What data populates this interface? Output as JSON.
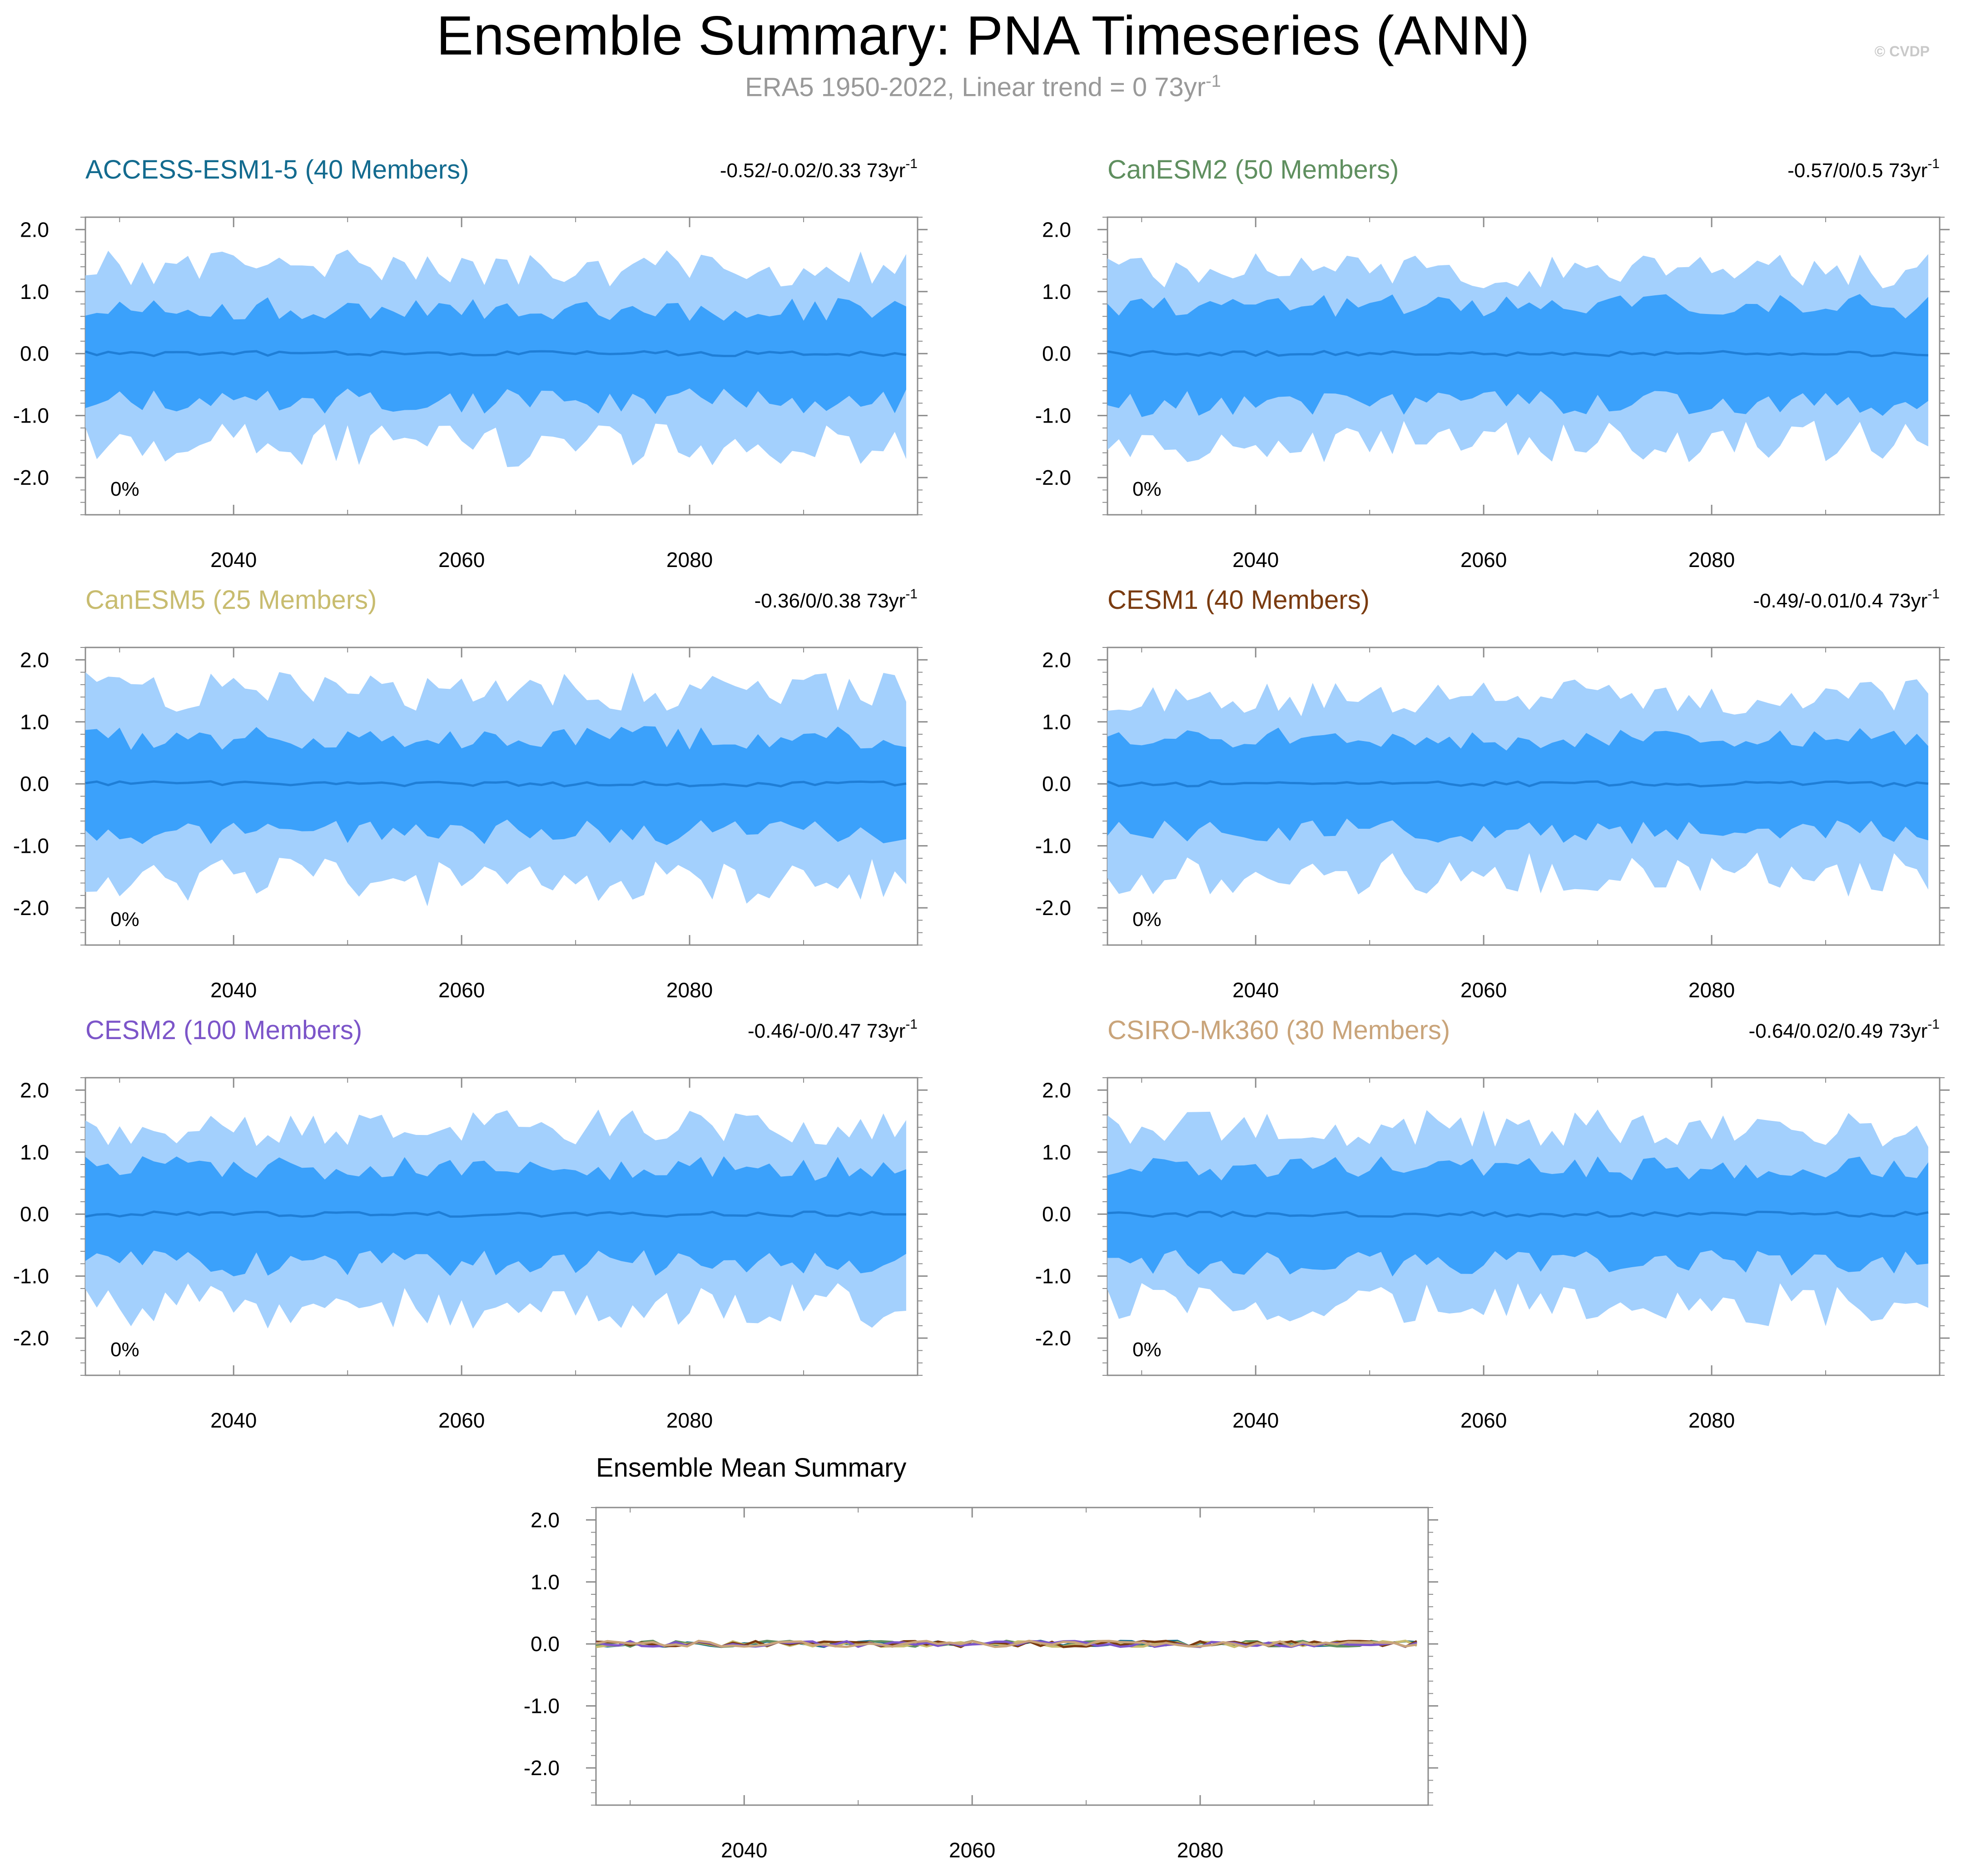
{
  "figure": {
    "title": "Ensemble Summary: PNA Timeseries (ANN)",
    "subtitle": "ERA5 1950-2022, Linear trend = 0 73yr",
    "subtitle_sup": "-1",
    "watermark": "© CVDP"
  },
  "chart_data": [
    {
      "type": "area",
      "title": "ACCESS-ESM1-5 (40 Members)",
      "title_color": "#136b8f",
      "stats": "-0.52/-0.02/0.33 73yr",
      "stats_sup": "-1",
      "annotation": "0%",
      "xlim": [
        2027,
        2100
      ],
      "ylim": [
        -2.6,
        2.2
      ],
      "x_ticks": [
        2040,
        2060,
        2080
      ],
      "y_ticks": [
        "2.0",
        "1.0",
        "0.0",
        "-1.0",
        "-2.0"
      ],
      "outer_amp": 1.35,
      "inner_amp": 0.7,
      "seed": 11
    },
    {
      "type": "area",
      "title": "CanESM2 (50 Members)",
      "title_color": "#5f8f5f",
      "stats": "-0.57/0/0.5 73yr",
      "stats_sup": "-1",
      "annotation": "0%",
      "xlim": [
        2027,
        2100
      ],
      "ylim": [
        -2.6,
        2.2
      ],
      "x_ticks": [
        2040,
        2060,
        2080
      ],
      "y_ticks": [
        "2.0",
        "1.0",
        "0.0",
        "-1.0",
        "-2.0"
      ],
      "outer_amp": 1.3,
      "inner_amp": 0.75,
      "seed": 23
    },
    {
      "type": "area",
      "title": "CanESM5 (25 Members)",
      "title_color": "#c8bc6f",
      "stats": "-0.36/0/0.38 73yr",
      "stats_sup": "-1",
      "annotation": "0%",
      "xlim": [
        2027,
        2100
      ],
      "ylim": [
        -2.6,
        2.2
      ],
      "x_ticks": [
        2040,
        2060,
        2080
      ],
      "y_ticks": [
        "2.0",
        "1.0",
        "0.0",
        "-1.0",
        "-2.0"
      ],
      "outer_amp": 1.45,
      "inner_amp": 0.72,
      "seed": 37
    },
    {
      "type": "area",
      "title": "CESM1 (40 Members)",
      "title_color": "#7a3b10",
      "stats": "-0.49/-0.01/0.4 73yr",
      "stats_sup": "-1",
      "annotation": "0%",
      "xlim": [
        2027,
        2100
      ],
      "ylim": [
        -2.6,
        2.2
      ],
      "x_ticks": [
        2040,
        2060,
        2080
      ],
      "y_ticks": [
        "2.0",
        "1.0",
        "0.0",
        "-1.0",
        "-2.0"
      ],
      "outer_amp": 1.35,
      "inner_amp": 0.7,
      "seed": 41
    },
    {
      "type": "area",
      "title": "CESM2 (100 Members)",
      "title_color": "#7c55c9",
      "stats": "-0.46/-0/0.47 73yr",
      "stats_sup": "-1",
      "annotation": "0%",
      "xlim": [
        2027,
        2100
      ],
      "ylim": [
        -2.6,
        2.2
      ],
      "x_ticks": [
        2040,
        2060,
        2080
      ],
      "y_ticks": [
        "2.0",
        "1.0",
        "0.0",
        "-1.0",
        "-2.0"
      ],
      "outer_amp": 1.35,
      "inner_amp": 0.72,
      "seed": 53
    },
    {
      "type": "area",
      "title": "CSIRO-Mk360 (30 Members)",
      "title_color": "#c9a47a",
      "stats": "-0.64/0.02/0.49 73yr",
      "stats_sup": "-1",
      "annotation": "0%",
      "xlim": [
        2027,
        2100
      ],
      "ylim": [
        -2.6,
        2.2
      ],
      "x_ticks": [
        2040,
        2060,
        2080
      ],
      "y_ticks": [
        "2.0",
        "1.0",
        "0.0",
        "-1.0",
        "-2.0"
      ],
      "outer_amp": 1.35,
      "inner_amp": 0.72,
      "seed": 67
    },
    {
      "type": "line",
      "title": "Ensemble Mean Summary",
      "title_color": "#000000",
      "xlim": [
        2027,
        2100
      ],
      "ylim": [
        -2.6,
        2.2
      ],
      "x_ticks": [
        2040,
        2060,
        2080
      ],
      "y_ticks": [
        "2.0",
        "1.0",
        "0.0",
        "-1.0",
        "-2.0"
      ],
      "series_colors": [
        "#136b8f",
        "#5f8f5f",
        "#c8bc6f",
        "#7a3b10",
        "#7c55c9",
        "#c9a47a"
      ]
    }
  ],
  "colors": {
    "outer_band": "#a3d0fd",
    "inner_band": "#3ba1fb",
    "mean_line": "#1f7ed6",
    "frame": "#8c8c8c"
  }
}
